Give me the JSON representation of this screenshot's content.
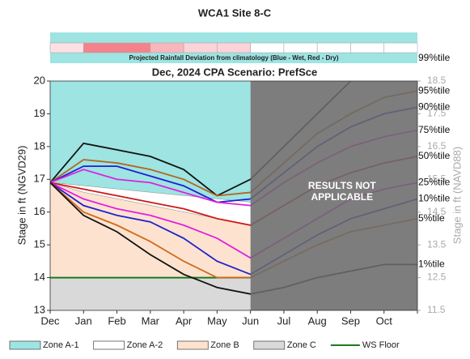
{
  "chart_data": {
    "type": "line",
    "title": "WCA1 Site 8-C",
    "subtitle": "Dec, 2024  CPA Scenario: PrefSce",
    "rainfall_label": "Projected Rainfall Deviation from climatology (Blue - Wet, Red - Dry)",
    "rainfall_colors": [
      "#fde0e4",
      "#f4828a",
      "#f4828a",
      "#f9b6bd",
      "#fcd3d8",
      "#fcd3d8",
      "#ffffff",
      "#ffffff",
      "#ffffff",
      "#ffffff",
      "#ffffff"
    ],
    "ylabel": "Stage in ft (NGVD29)",
    "y2label": "Stage in ft (NAVD88)",
    "categories": [
      "Dec",
      "Jan",
      "Feb",
      "Mar",
      "Apr",
      "May",
      "Jun",
      "Jul",
      "Aug",
      "Sep",
      "Oct",
      null
    ],
    "ylim": [
      13,
      20
    ],
    "yticks": [
      13,
      14,
      15,
      16,
      17,
      18,
      19,
      20
    ],
    "y2lim": [
      11.5,
      18.5
    ],
    "y2ticks": [
      11.5,
      12.5,
      13.5,
      14.5,
      15.5,
      16.5,
      17.5,
      18.5
    ],
    "zones": [
      {
        "name": "Zone A-1",
        "color": "#9de4e2",
        "floor": [
          16.9,
          16.8,
          16.7,
          16.6,
          16.5,
          16.4,
          16.3
        ]
      },
      {
        "name": "Zone A-2",
        "color": "#ffffff",
        "floor": [
          16.9,
          16.6,
          16.4,
          16.2,
          16.0,
          15.8,
          15.6
        ]
      },
      {
        "name": "Zone B",
        "color": "#fde3cf",
        "floor": [
          14,
          14,
          14,
          14,
          14,
          14,
          14
        ]
      },
      {
        "name": "Zone C",
        "color": "#d9d9d9"
      }
    ],
    "ws_floor": {
      "name": "WS Floor",
      "color": "#1b7a1b",
      "values": [
        14,
        14,
        14,
        14,
        14,
        14,
        14
      ]
    },
    "not_applicable": [
      "RESULTS NOT",
      "APPLICABLE"
    ],
    "series": [
      {
        "name": "99%tile",
        "color": "#111111",
        "values": [
          16.9,
          18.1,
          17.9,
          17.7,
          17.3,
          16.5,
          17.0,
          18.0,
          19.0,
          20.0,
          20.5,
          20.7
        ]
      },
      {
        "name": "95%tile",
        "color": "#b5651d",
        "values": [
          16.9,
          17.6,
          17.5,
          17.3,
          17.0,
          16.5,
          16.6,
          17.5,
          18.4,
          19.0,
          19.5,
          19.7
        ]
      },
      {
        "name": "90%tile",
        "color": "#1f1fd0",
        "values": [
          16.9,
          17.4,
          17.4,
          17.1,
          16.8,
          16.3,
          16.4,
          17.2,
          18.0,
          18.6,
          19.0,
          19.2
        ]
      },
      {
        "name": "75%tile",
        "color": "#e020e0",
        "values": [
          16.9,
          17.3,
          17.0,
          16.9,
          16.6,
          16.3,
          16.2,
          16.9,
          17.5,
          18.0,
          18.3,
          18.5
        ]
      },
      {
        "name": "50%tile",
        "color": "#d01818",
        "values": [
          16.9,
          16.7,
          16.5,
          16.3,
          16.1,
          15.8,
          15.6,
          16.2,
          16.8,
          17.2,
          17.5,
          17.7
        ]
      },
      {
        "name": "25%tile",
        "color": "#e020e0",
        "values": [
          16.9,
          16.4,
          16.1,
          15.9,
          15.6,
          15.2,
          14.6,
          15.2,
          15.8,
          16.4,
          16.7,
          16.9
        ]
      },
      {
        "name": "10%tile",
        "color": "#1f1fd0",
        "values": [
          16.9,
          16.2,
          15.9,
          15.7,
          15.2,
          14.5,
          14.1,
          14.7,
          15.3,
          15.8,
          16.1,
          16.4
        ]
      },
      {
        "name": "5%tile",
        "color": "#d2691e",
        "values": [
          16.9,
          16.0,
          15.6,
          15.1,
          14.5,
          14.0,
          14.0,
          14.5,
          15.0,
          15.4,
          15.6,
          15.8
        ]
      },
      {
        "name": "1%tile",
        "color": "#111111",
        "values": [
          16.9,
          15.9,
          15.4,
          14.7,
          14.1,
          13.7,
          13.5,
          13.7,
          14.0,
          14.2,
          14.4,
          14.4
        ]
      }
    ]
  }
}
